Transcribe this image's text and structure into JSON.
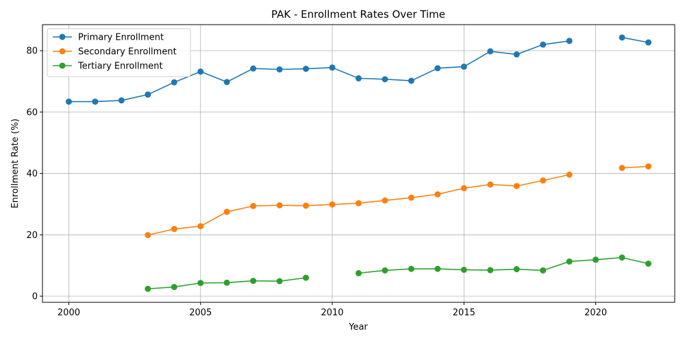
{
  "chart_data": {
    "type": "line",
    "title": "PAK - Enrollment Rates Over Time",
    "xlabel": "Year",
    "ylabel": "Enrollment Rate (%)",
    "xlim": [
      1999,
      2023
    ],
    "ylim": [
      -2,
      88.5
    ],
    "xticks": [
      2000,
      2005,
      2010,
      2015,
      2020
    ],
    "yticks": [
      0,
      20,
      40,
      60,
      80
    ],
    "grid": true,
    "legend_position": "top-left",
    "series": [
      {
        "name": "Primary Enrollment",
        "color": "#1f77b4",
        "points": [
          [
            2000,
            63.4
          ],
          [
            2001,
            63.4
          ],
          [
            2002,
            63.8
          ],
          [
            2003,
            65.7
          ],
          [
            2004,
            69.7
          ],
          [
            2005,
            73.2
          ],
          [
            2006,
            69.8
          ],
          [
            2007,
            74.2
          ],
          [
            2008,
            73.9
          ],
          [
            2009,
            74.1
          ],
          [
            2010,
            74.5
          ],
          [
            2011,
            71.0
          ],
          [
            2012,
            70.7
          ],
          [
            2013,
            70.2
          ],
          [
            2014,
            74.3
          ],
          [
            2015,
            74.8
          ],
          [
            2016,
            79.8
          ],
          [
            2017,
            78.8
          ],
          [
            2018,
            82.0
          ],
          [
            2019,
            83.2
          ],
          [
            2020,
            null
          ],
          [
            2021,
            84.3
          ],
          [
            2022,
            82.7
          ]
        ]
      },
      {
        "name": "Secondary Enrollment",
        "color": "#ff7f0e",
        "points": [
          [
            2003,
            19.9
          ],
          [
            2004,
            21.9
          ],
          [
            2005,
            22.8
          ],
          [
            2006,
            27.5
          ],
          [
            2007,
            29.4
          ],
          [
            2008,
            29.6
          ],
          [
            2009,
            29.5
          ],
          [
            2010,
            29.9
          ],
          [
            2011,
            30.3
          ],
          [
            2012,
            31.2
          ],
          [
            2013,
            32.1
          ],
          [
            2014,
            33.2
          ],
          [
            2015,
            35.2
          ],
          [
            2016,
            36.4
          ],
          [
            2017,
            35.9
          ],
          [
            2018,
            37.7
          ],
          [
            2019,
            39.6
          ],
          [
            2020,
            null
          ],
          [
            2021,
            41.8
          ],
          [
            2022,
            42.3
          ]
        ]
      },
      {
        "name": "Tertiary Enrollment",
        "color": "#2ca02c",
        "points": [
          [
            2003,
            2.4
          ],
          [
            2004,
            3.0
          ],
          [
            2005,
            4.3
          ],
          [
            2006,
            4.4
          ],
          [
            2007,
            5.0
          ],
          [
            2008,
            4.9
          ],
          [
            2009,
            6.0
          ],
          [
            2010,
            null
          ],
          [
            2011,
            7.5
          ],
          [
            2012,
            8.4
          ],
          [
            2013,
            8.9
          ],
          [
            2014,
            8.9
          ],
          [
            2015,
            8.6
          ],
          [
            2016,
            8.5
          ],
          [
            2017,
            8.8
          ],
          [
            2018,
            8.4
          ],
          [
            2019,
            11.3
          ],
          [
            2020,
            11.9
          ],
          [
            2021,
            12.6
          ],
          [
            2022,
            10.6
          ]
        ]
      }
    ]
  }
}
